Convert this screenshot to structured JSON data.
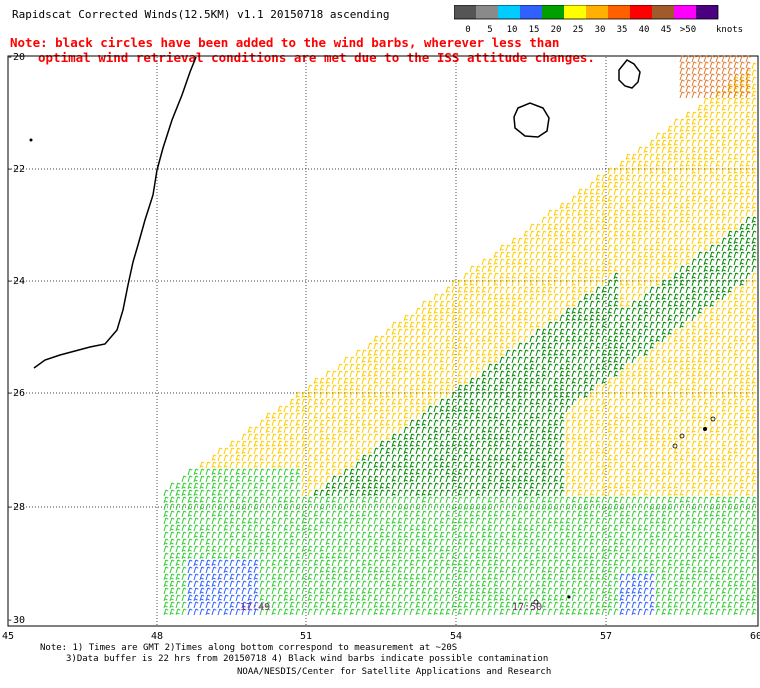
{
  "header": {
    "title": "Rapidscat Corrected Winds(12.5KM) v1.1 20150718 ascending",
    "note_line1": "Note: black circles have been added to the wind barbs, wherever less than",
    "note_line2": "optimal wind retrieval conditions are met due to the ISS attitude changes."
  },
  "legend": {
    "unit": "knots",
    "labels": [
      "0",
      "5",
      "10",
      "15",
      "20",
      "25",
      "30",
      "35",
      "40",
      "45",
      ">50"
    ],
    "colors": [
      "#555555",
      "#8a8a8a",
      "#00ccff",
      "#3060ff",
      "#00a000",
      "#ffff00",
      "#ffb000",
      "#ff6000",
      "#ff0000",
      "#a05a2c",
      "#ff00ff",
      "#4b0082"
    ]
  },
  "map": {
    "lon_ticks": [
      "45",
      "48",
      "51",
      "54",
      "57",
      "60"
    ],
    "lat_ticks": [
      "-20",
      "-22",
      "-24",
      "-26",
      "-28",
      "-30"
    ],
    "time_labels": [
      "17:49",
      "17:50"
    ]
  },
  "footer": {
    "line1": "Note: 1) Times are GMT 2)Times along bottom correspond to measurement at ~20S",
    "line2": "3)Data buffer is 22 hrs from 20150718 4) Black wind barbs indicate possible contamination",
    "line3": "NOAA/NESDIS/Center for Satellite Applications and Research"
  }
}
